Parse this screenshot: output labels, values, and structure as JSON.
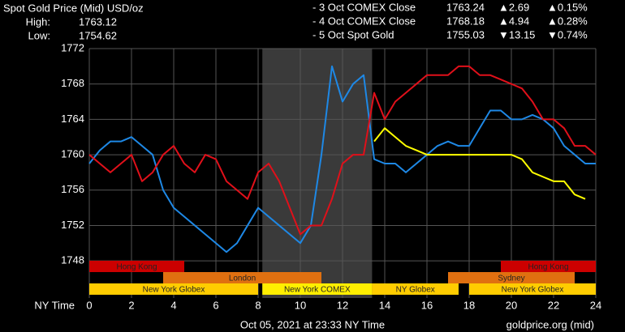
{
  "chart_data": {
    "type": "line",
    "title": "Spot Gold Price (Mid) USD/oz",
    "high_label": "High:",
    "high": 1763.12,
    "low_label": "Low:",
    "low": 1754.62,
    "x_label": "NY Time",
    "footer": "Oct 05, 2021 at 23:33 NY Time",
    "source": "goldprice.org (mid)",
    "xlim": [
      0,
      24
    ],
    "xticks": [
      0,
      2,
      4,
      6,
      8,
      10,
      12,
      14,
      16,
      18,
      20,
      22,
      24
    ],
    "ylim": [
      1743.8,
      1772
    ],
    "yticks": [
      1748,
      1752,
      1756,
      1760,
      1764,
      1768,
      1772
    ],
    "grid": true,
    "highlight_x": [
      8.2,
      13.4
    ],
    "x": [
      0,
      0.5,
      1,
      1.5,
      2,
      2.5,
      3,
      3.5,
      4,
      4.5,
      5,
      5.5,
      6,
      6.5,
      7,
      7.5,
      8,
      8.5,
      9,
      9.5,
      10,
      10.5,
      11,
      11.5,
      12,
      12.5,
      13,
      13.5,
      14,
      14.5,
      15,
      15.5,
      16,
      16.5,
      17,
      17.5,
      18,
      18.5,
      19,
      19.5,
      20,
      20.5,
      21,
      21.5,
      22,
      22.5,
      23,
      23.5,
      24
    ],
    "series": [
      {
        "name": "- 3 Oct COMEX Close",
        "color": "#1e88e5",
        "close": 1763.24,
        "change": "▲2.69",
        "pct": "▲0.15%",
        "change_color": "#22cc22",
        "values": [
          1759,
          1760.5,
          1761.5,
          1761.5,
          1762,
          1761,
          1760,
          1756,
          1754,
          1753,
          1752,
          1751,
          1750,
          1749,
          1750,
          1752,
          1754,
          1753,
          1752,
          1751,
          1750,
          1752,
          1760,
          1770,
          1766,
          1768,
          1769,
          1759.5,
          1759,
          1759,
          1758,
          1759,
          1760,
          1761,
          1761.5,
          1761,
          1761,
          1763,
          1765,
          1765,
          1764,
          1764,
          1764.5,
          1764,
          1763,
          1761,
          1760,
          1759,
          1759
        ]
      },
      {
        "name": "- 4 Oct COMEX Close",
        "color": "#e0101a",
        "close": 1768.18,
        "change": "▲4.94",
        "pct": "▲0.28%",
        "change_color": "#22cc22",
        "values": [
          1760,
          1759,
          1758,
          1759,
          1760,
          1757,
          1758,
          1760,
          1761,
          1759,
          1758,
          1760,
          1759.5,
          1757,
          1756,
          1755,
          1758,
          1759,
          1757,
          1754,
          1751,
          1752,
          1752,
          1755,
          1759,
          1760,
          1760,
          1767,
          1764,
          1766,
          1767,
          1768,
          1769,
          1769,
          1769,
          1770,
          1770,
          1769,
          1769,
          1768.5,
          1768,
          1767.5,
          1766,
          1764,
          1764,
          1763,
          1761,
          1761,
          1760
        ]
      },
      {
        "name": "- 5 Oct Spot Gold",
        "color": "#ffff00",
        "close": 1755.03,
        "change": "▼13.15",
        "pct": "▼0.74%",
        "change_color": "#ee2222",
        "values": [
          null,
          null,
          null,
          null,
          null,
          null,
          null,
          null,
          null,
          null,
          null,
          null,
          null,
          null,
          null,
          null,
          null,
          null,
          null,
          null,
          null,
          null,
          null,
          null,
          null,
          null,
          null,
          1761.5,
          1763,
          1762,
          1761,
          1760.5,
          1760,
          1760,
          1760,
          1760,
          1760,
          1760,
          1760,
          1760,
          1760,
          1759.5,
          1758,
          1757.5,
          1757,
          1757,
          1755.5,
          1755,
          null
        ]
      }
    ],
    "sessions": [
      {
        "name": "Hong Kong",
        "start": 0,
        "end": 4.5,
        "row": 0,
        "color": "#cc0000"
      },
      {
        "name": "Hong Kong",
        "start": 19.5,
        "end": 24,
        "row": 0,
        "color": "#cc0000"
      },
      {
        "name": "London",
        "start": 3.5,
        "end": 11,
        "row": 1,
        "color": "#e07010"
      },
      {
        "name": "Sydney",
        "start": 17,
        "end": 23,
        "row": 1,
        "color": "#e07010"
      },
      {
        "name": "New York Globex",
        "start": 0,
        "end": 8,
        "row": 2,
        "color": "#ffcc00"
      },
      {
        "name": "New York COMEX",
        "start": 8.2,
        "end": 13.4,
        "row": 2,
        "color": "#ffee00"
      },
      {
        "name": "NY Globex",
        "start": 13.4,
        "end": 17.5,
        "row": 2,
        "color": "#ffcc00"
      },
      {
        "name": "New York Globex",
        "start": 18,
        "end": 24,
        "row": 2,
        "color": "#ffcc00"
      }
    ]
  }
}
